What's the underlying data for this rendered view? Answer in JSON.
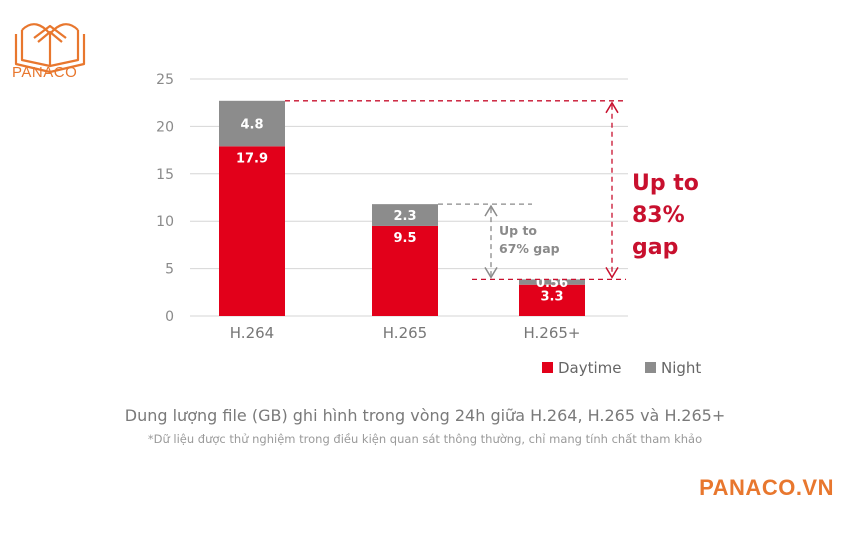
{
  "brand": {
    "logo_text": "PANACO",
    "site": "PANACO.VN",
    "color": "#e8772e"
  },
  "chart_data": {
    "type": "bar",
    "stacked": true,
    "categories": [
      "H.264",
      "H.265",
      "H.265+"
    ],
    "series": [
      {
        "name": "Daytime",
        "values": [
          17.9,
          9.5,
          3.3
        ],
        "color": "#e2001a"
      },
      {
        "name": "Night",
        "values": [
          4.8,
          2.3,
          0.56
        ],
        "color": "#8c8c8c"
      }
    ],
    "value_labels": {
      "Daytime": [
        "17.9",
        "9.5",
        "3.3"
      ],
      "Night": [
        "4.8",
        "2.3",
        "0.56"
      ]
    },
    "y_ticks": [
      "0",
      "5",
      "10",
      "15",
      "20",
      "25"
    ],
    "ylim": [
      0,
      25
    ],
    "grid": true,
    "legend_position": "bottom-right",
    "annotations": [
      {
        "text_lines": [
          "Up to",
          "67% gap"
        ],
        "color": "#8a8a8a"
      },
      {
        "text_lines": [
          "Up to",
          "83%",
          "gap"
        ],
        "color": "#c8102e"
      }
    ]
  },
  "caption": "Dung lượng file (GB) ghi hình trong vòng 24h giữa H.264, H.265 và H.265+",
  "note": "*Dữ liệu được thử nghiệm trong điều kiện quan sát thông thường, chỉ mang tính chất tham khảo"
}
